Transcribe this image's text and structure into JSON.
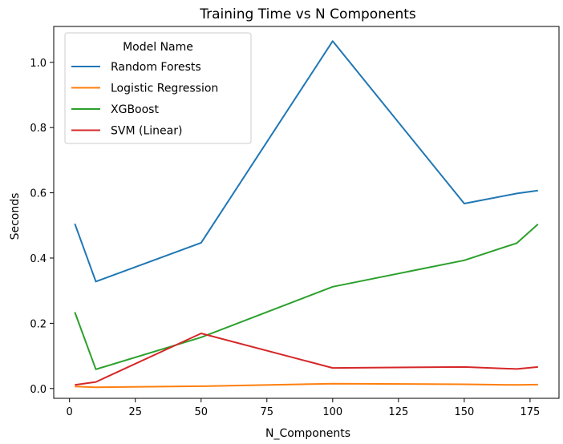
{
  "chart_data": {
    "type": "line",
    "title": "Training Time vs N Components",
    "xlabel": "N_Components",
    "ylabel": "Seconds",
    "xlim": [
      -6,
      186
    ],
    "ylim": [
      -0.03,
      1.11
    ],
    "xticks": [
      0,
      25,
      50,
      75,
      100,
      125,
      150,
      175
    ],
    "xtick_labels": [
      "0",
      "25",
      "50",
      "75",
      "100",
      "125",
      "150",
      "175"
    ],
    "yticks": [
      0.0,
      0.2,
      0.4,
      0.6,
      0.8,
      1.0
    ],
    "ytick_labels": [
      "0.0",
      "0.2",
      "0.4",
      "0.6",
      "0.8",
      "1.0"
    ],
    "grid": false,
    "legend": {
      "title": "Model Name",
      "position": "upper-left"
    },
    "series": [
      {
        "name": "Random Forests",
        "color": "#1f77b4",
        "x": [
          2,
          10,
          50,
          100,
          150,
          170,
          178
        ],
        "y": [
          0.505,
          0.328,
          0.447,
          1.065,
          0.567,
          0.598,
          0.607
        ]
      },
      {
        "name": "Logistic Regression",
        "color": "#ff7f0e",
        "x": [
          2,
          10,
          50,
          100,
          150,
          170,
          178
        ],
        "y": [
          0.006,
          0.004,
          0.007,
          0.015,
          0.013,
          0.011,
          0.012
        ]
      },
      {
        "name": "XGBoost",
        "color": "#2ca02c",
        "x": [
          2,
          10,
          50,
          100,
          150,
          170,
          178
        ],
        "y": [
          0.234,
          0.059,
          0.157,
          0.312,
          0.393,
          0.446,
          0.504
        ]
      },
      {
        "name": "SVM (Linear)",
        "color": "#d62728",
        "x": [
          2,
          10,
          50,
          100,
          150,
          170,
          178
        ],
        "y": [
          0.011,
          0.02,
          0.169,
          0.063,
          0.066,
          0.06,
          0.066
        ]
      }
    ]
  }
}
